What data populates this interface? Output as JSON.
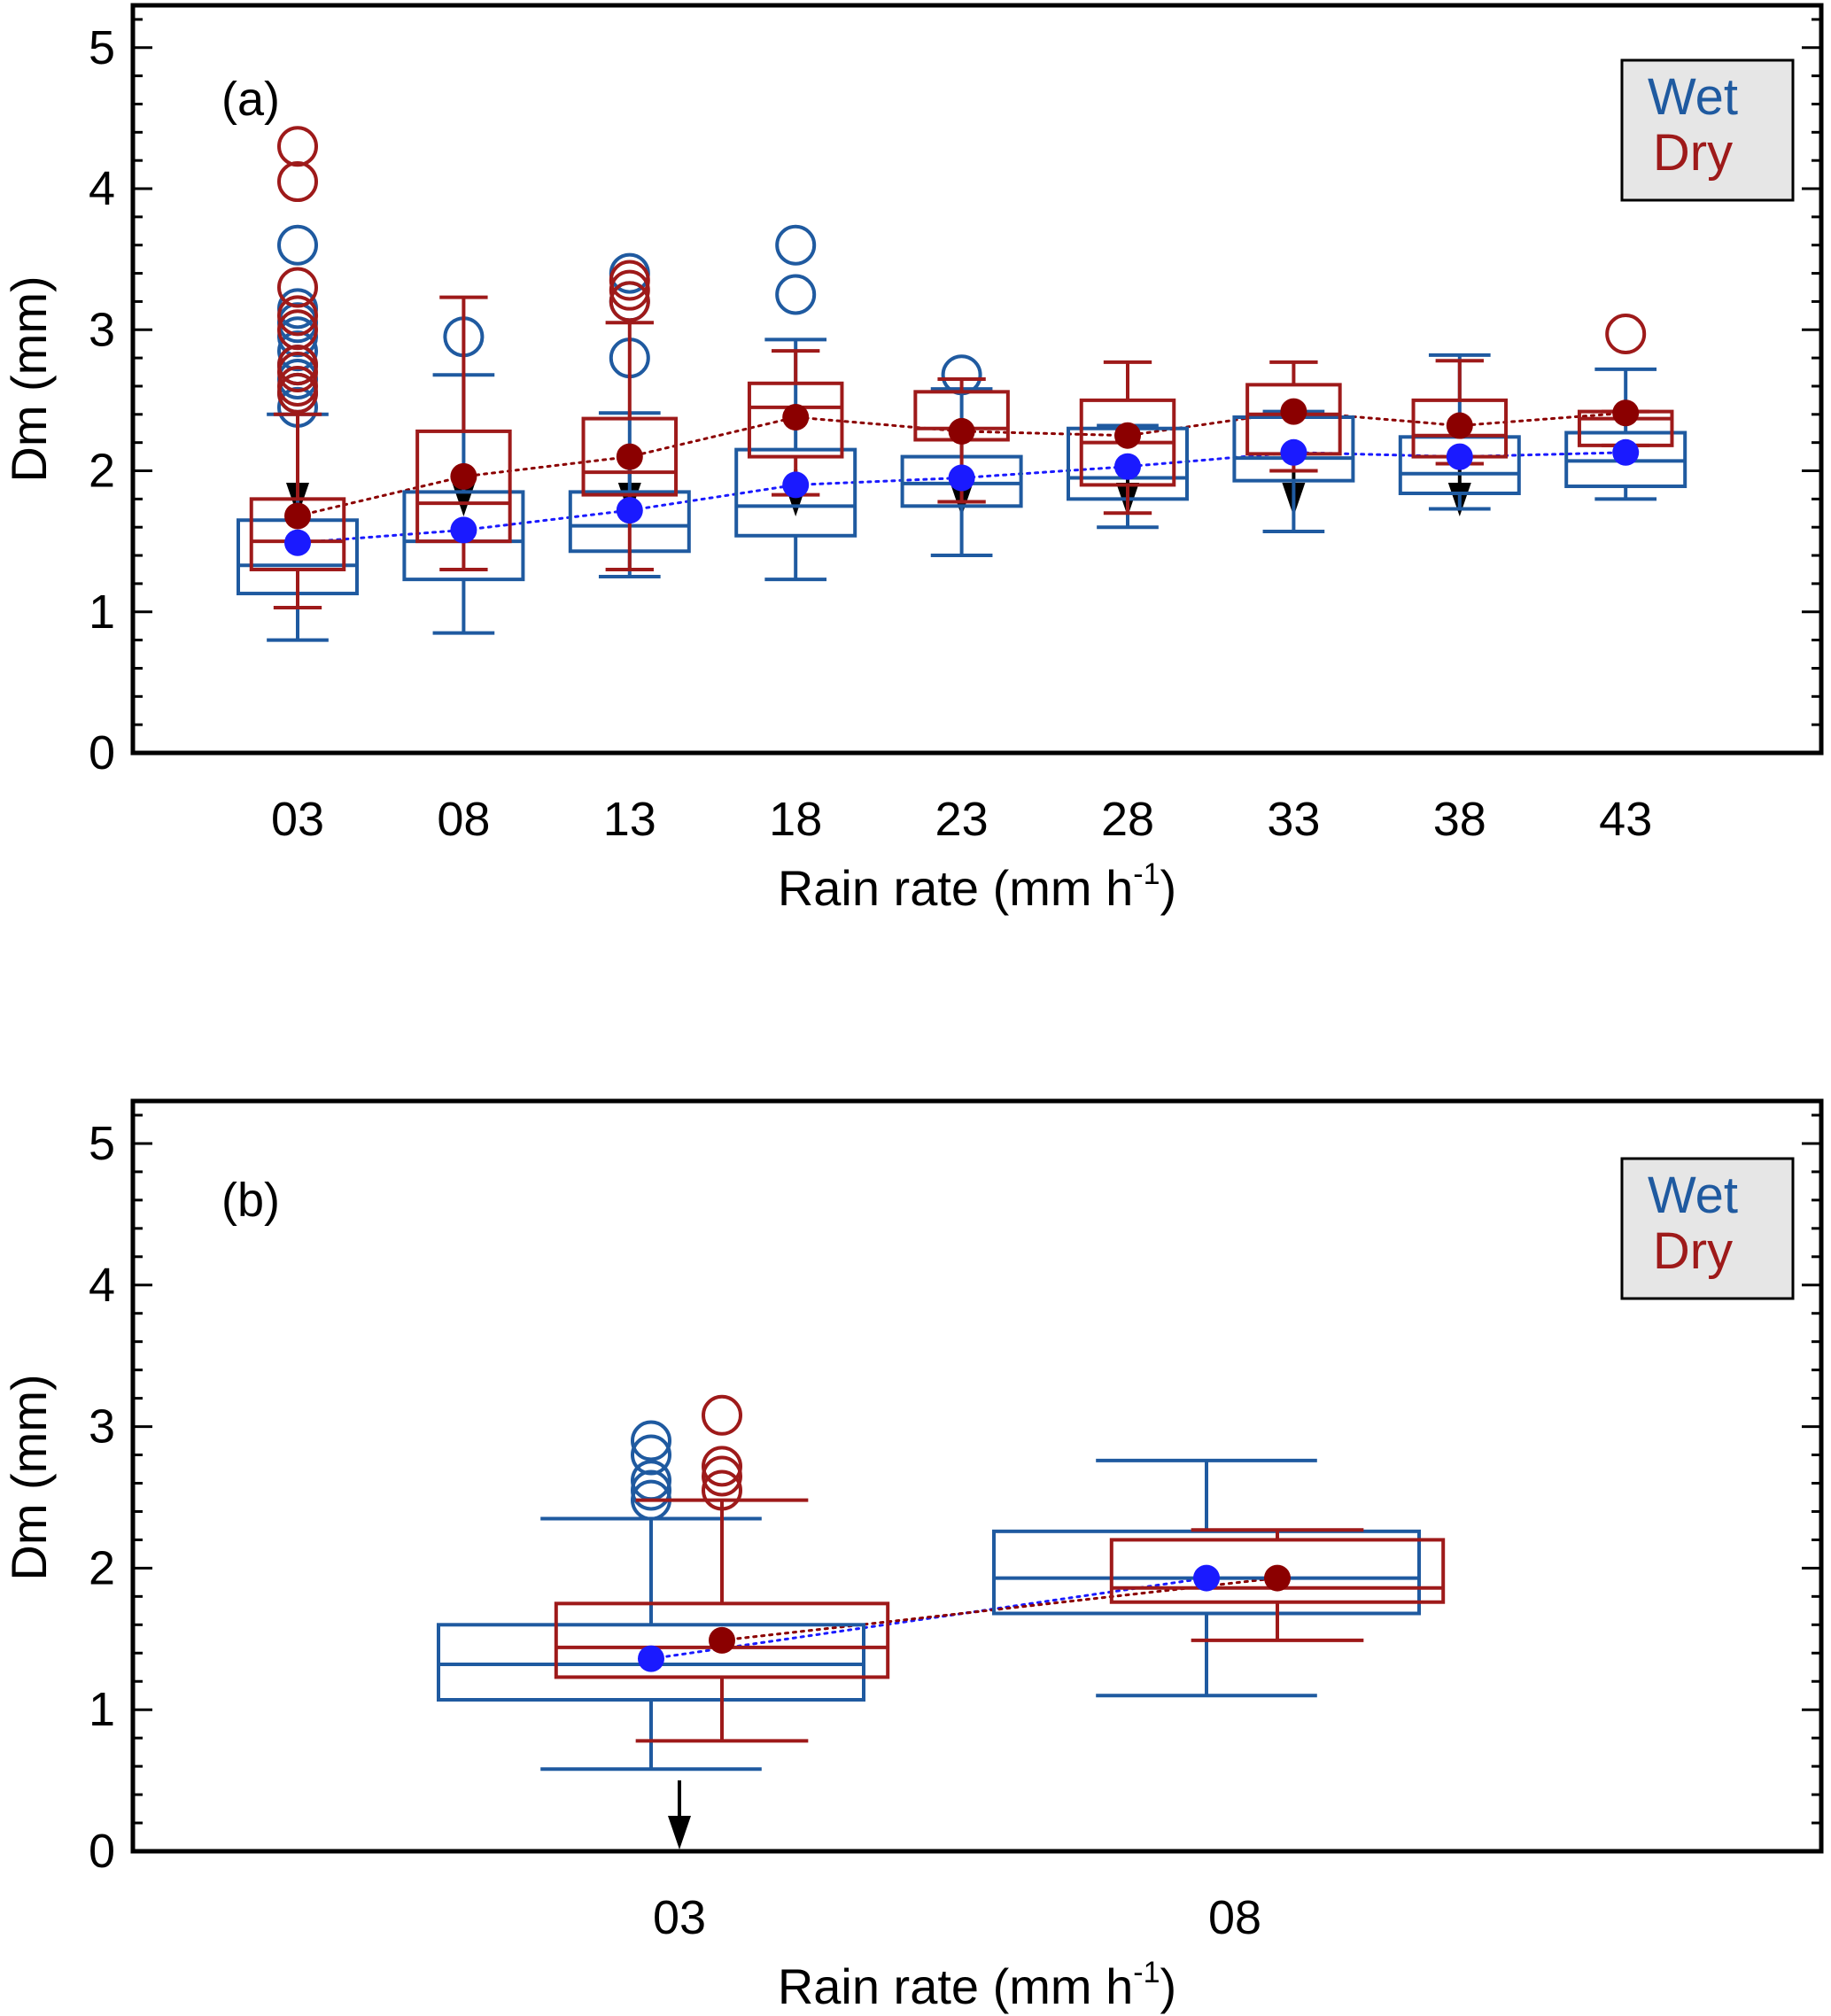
{
  "colors": {
    "wet": "#1f5aa0",
    "dry": "#9e1a1a",
    "wet_mean": "#1a1aff",
    "dry_mean": "#8b0000",
    "arrow": "#000000",
    "legend_bg": "#e6e6e6"
  },
  "chart_data": [
    {
      "type": "box",
      "panel_label": "(a)",
      "xlabel_main": "Rain rate (mm h",
      "xlabel_sup": "-1",
      "xlabel_end": ")",
      "ylabel": "Dm (mm)",
      "ylim": [
        0,
        5.3
      ],
      "yticks": [
        "0",
        "1",
        "2",
        "3",
        "4",
        "5"
      ],
      "categories": [
        "03",
        "08",
        "13",
        "18",
        "23",
        "28",
        "33",
        "38",
        "43"
      ],
      "arrows_at": [
        "03",
        "08",
        "13",
        "18",
        "23",
        "28",
        "33",
        "38"
      ],
      "legend": {
        "wet": "Wet",
        "dry": "Dry",
        "position": "top-right"
      },
      "series": [
        {
          "name": "Wet",
          "boxes": [
            {
              "whisker_low": 0.8,
              "q1": 1.13,
              "median": 1.33,
              "q3": 1.65,
              "whisker_high": 2.4,
              "mean": 1.49,
              "outliers": [
                2.45,
                2.55,
                2.65,
                2.75,
                2.85,
                2.95,
                3.05,
                3.15,
                3.6
              ]
            },
            {
              "whisker_low": 0.85,
              "q1": 1.23,
              "median": 1.5,
              "q3": 1.85,
              "whisker_high": 2.68,
              "mean": 1.58,
              "outliers": [
                2.95
              ]
            },
            {
              "whisker_low": 1.25,
              "q1": 1.43,
              "median": 1.61,
              "q3": 1.85,
              "whisker_high": 2.41,
              "mean": 1.72,
              "outliers": [
                2.8,
                3.2,
                3.4
              ]
            },
            {
              "whisker_low": 1.23,
              "q1": 1.54,
              "median": 1.75,
              "q3": 2.15,
              "whisker_high": 2.93,
              "mean": 1.9,
              "outliers": [
                3.25,
                3.6
              ]
            },
            {
              "whisker_low": 1.4,
              "q1": 1.75,
              "median": 1.91,
              "q3": 2.1,
              "whisker_high": 2.58,
              "mean": 1.95,
              "outliers": [
                2.68
              ]
            },
            {
              "whisker_low": 1.6,
              "q1": 1.8,
              "median": 1.95,
              "q3": 2.3,
              "whisker_high": 2.32,
              "mean": 2.03,
              "outliers": []
            },
            {
              "whisker_low": 1.57,
              "q1": 1.93,
              "median": 2.09,
              "q3": 2.38,
              "whisker_high": 2.42,
              "mean": 2.13,
              "outliers": []
            },
            {
              "whisker_low": 1.73,
              "q1": 1.84,
              "median": 1.98,
              "q3": 2.24,
              "whisker_high": 2.82,
              "mean": 2.1,
              "outliers": []
            },
            {
              "whisker_low": 1.8,
              "q1": 1.89,
              "median": 2.07,
              "q3": 2.27,
              "whisker_high": 2.72,
              "mean": 2.13,
              "outliers": []
            }
          ]
        },
        {
          "name": "Dry",
          "boxes": [
            {
              "whisker_low": 1.03,
              "q1": 1.3,
              "median": 1.5,
              "q3": 1.8,
              "whisker_high": 2.4,
              "mean": 1.68,
              "outliers": [
                2.55,
                2.6,
                2.7,
                2.75,
                3.0,
                3.1,
                3.3,
                4.05,
                4.3
              ]
            },
            {
              "whisker_low": 1.3,
              "q1": 1.5,
              "median": 1.77,
              "q3": 2.28,
              "whisker_high": 3.23,
              "mean": 1.96,
              "outliers": []
            },
            {
              "whisker_low": 1.3,
              "q1": 1.83,
              "median": 1.99,
              "q3": 2.37,
              "whisker_high": 3.05,
              "mean": 2.1,
              "outliers": [
                3.2,
                3.28,
                3.35
              ]
            },
            {
              "whisker_low": 1.83,
              "q1": 2.1,
              "median": 2.45,
              "q3": 2.62,
              "whisker_high": 2.85,
              "mean": 2.38,
              "outliers": []
            },
            {
              "whisker_low": 1.78,
              "q1": 2.22,
              "median": 2.3,
              "q3": 2.56,
              "whisker_high": 2.65,
              "mean": 2.28,
              "outliers": []
            },
            {
              "whisker_low": 1.7,
              "q1": 1.9,
              "median": 2.2,
              "q3": 2.5,
              "whisker_high": 2.77,
              "mean": 2.25,
              "outliers": []
            },
            {
              "whisker_low": 2.0,
              "q1": 2.12,
              "median": 2.4,
              "q3": 2.61,
              "whisker_high": 2.77,
              "mean": 2.42,
              "outliers": []
            },
            {
              "whisker_low": 2.05,
              "q1": 2.1,
              "median": 2.25,
              "q3": 2.5,
              "whisker_high": 2.78,
              "mean": 2.32,
              "outliers": []
            },
            {
              "whisker_low": 2.18,
              "q1": 2.18,
              "median": 2.37,
              "q3": 2.42,
              "whisker_high": 2.42,
              "mean": 2.41,
              "outliers": [
                2.97
              ]
            }
          ]
        }
      ]
    },
    {
      "type": "box",
      "panel_label": "(b)",
      "xlabel_main": "Rain rate (mm h",
      "xlabel_sup": "-1",
      "xlabel_end": ")",
      "ylabel": "Dm (mm)",
      "ylim": [
        0,
        5.3
      ],
      "yticks": [
        "0",
        "1",
        "2",
        "3",
        "4",
        "5"
      ],
      "categories": [
        "03",
        "08"
      ],
      "arrows_at": [
        "03"
      ],
      "legend": {
        "wet": "Wet",
        "dry": "Dry",
        "position": "top-right"
      },
      "series": [
        {
          "name": "Wet",
          "boxes": [
            {
              "whisker_low": 0.58,
              "q1": 1.07,
              "median": 1.32,
              "q3": 1.6,
              "whisker_high": 2.35,
              "mean": 1.36,
              "outliers": [
                2.48,
                2.55,
                2.62,
                2.8,
                2.9
              ]
            },
            {
              "whisker_low": 1.1,
              "q1": 1.68,
              "median": 1.93,
              "q3": 2.26,
              "whisker_high": 2.76,
              "mean": 1.93,
              "outliers": []
            }
          ]
        },
        {
          "name": "Dry",
          "boxes": [
            {
              "whisker_low": 0.78,
              "q1": 1.23,
              "median": 1.44,
              "q3": 1.75,
              "whisker_high": 2.48,
              "mean": 1.49,
              "outliers": [
                2.55,
                2.65,
                2.72,
                3.08
              ]
            },
            {
              "whisker_low": 1.49,
              "q1": 1.76,
              "median": 1.86,
              "q3": 2.2,
              "whisker_high": 2.27,
              "mean": 1.93,
              "outliers": []
            }
          ]
        }
      ]
    }
  ]
}
